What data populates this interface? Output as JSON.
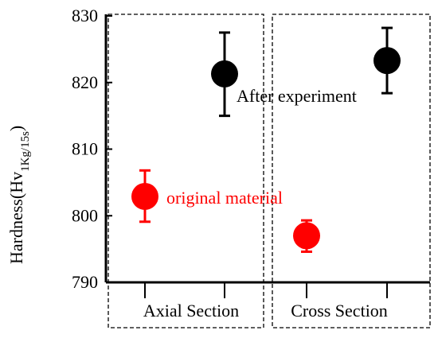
{
  "chart_data": {
    "type": "scatter",
    "ylabel": {
      "prefix": "Hardness(Hv",
      "subscript": "1Kg/15s",
      "suffix": ")"
    },
    "ylim": [
      790,
      830
    ],
    "yticks": [
      790,
      800,
      810,
      820,
      830
    ],
    "groups": [
      "Axial Section",
      "Cross Section"
    ],
    "grid": false,
    "series": [
      {
        "name": "original material",
        "color": "#ff0000",
        "points": [
          {
            "group": "Axial Section",
            "y": 802.9,
            "err_low": 799.1,
            "err_high": 806.8
          },
          {
            "group": "Cross Section",
            "y": 797.0,
            "err_low": 794.6,
            "err_high": 799.3
          }
        ]
      },
      {
        "name": "After experiment",
        "color": "#000000",
        "points": [
          {
            "group": "Axial Section",
            "y": 821.3,
            "err_low": 815.0,
            "err_high": 827.5
          },
          {
            "group": "Cross Section",
            "y": 823.3,
            "err_low": 818.4,
            "err_high": 828.2
          }
        ]
      }
    ]
  }
}
